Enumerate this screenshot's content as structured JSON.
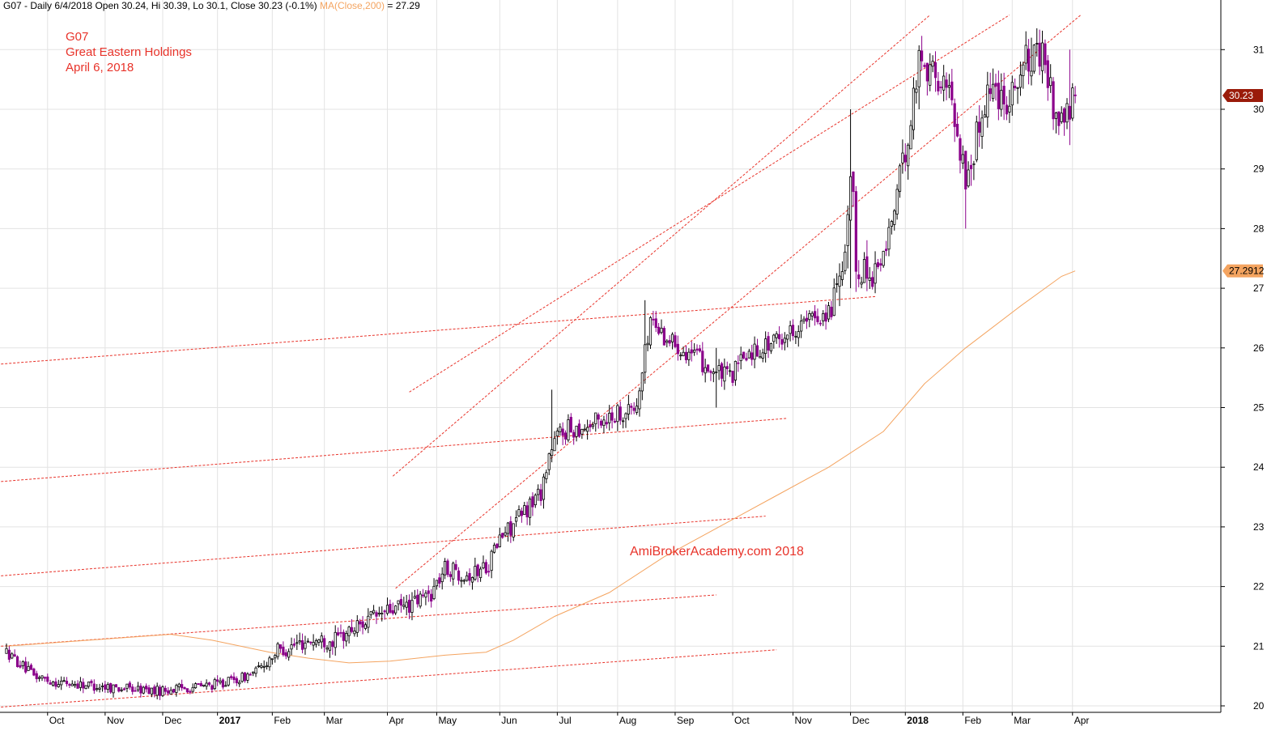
{
  "header": {
    "ticker": "G07",
    "period": "Daily",
    "date": "6/4/2018",
    "open": "Open 30.24,",
    "high": "Hi 30.39,",
    "low": "Lo 30.1,",
    "close": "Close 30.23 (-0.1%)",
    "ma_label": "MA(Close,200)",
    "ma_value": "= 27.29"
  },
  "annotations": {
    "symbol": "G07",
    "name": "Great Eastern Holdings",
    "date": "April 6, 2018",
    "watermark": "AmiBrokerAcademy.com  2018"
  },
  "chart_data": {
    "type": "candlestick",
    "ylim": [
      20,
      31.6
    ],
    "y_ticks": [
      "20",
      "21",
      "22",
      "23",
      "24",
      "25",
      "26",
      "27",
      "28",
      "29",
      "30",
      "31"
    ],
    "x_ticks": [
      {
        "label": "Oct",
        "bar": 15,
        "bold": false
      },
      {
        "label": "Nov",
        "bar": 36,
        "bold": false
      },
      {
        "label": "Dec",
        "bar": 57,
        "bold": false
      },
      {
        "label": "2017",
        "bar": 77,
        "bold": true
      },
      {
        "label": "Feb",
        "bar": 97,
        "bold": false
      },
      {
        "label": "Mar",
        "bar": 116,
        "bold": false
      },
      {
        "label": "Apr",
        "bar": 139,
        "bold": false
      },
      {
        "label": "May",
        "bar": 157,
        "bold": false
      },
      {
        "label": "Jun",
        "bar": 180,
        "bold": false
      },
      {
        "label": "Jul",
        "bar": 201,
        "bold": false
      },
      {
        "label": "Aug",
        "bar": 223,
        "bold": false
      },
      {
        "label": "Sep",
        "bar": 244,
        "bold": false
      },
      {
        "label": "Oct",
        "bar": 265,
        "bold": false
      },
      {
        "label": "Nov",
        "bar": 287,
        "bold": false
      },
      {
        "label": "Dec",
        "bar": 308,
        "bold": false
      },
      {
        "label": "2018",
        "bar": 328,
        "bold": true
      },
      {
        "label": "Feb",
        "bar": 349,
        "bold": false
      },
      {
        "label": "Mar",
        "bar": 367,
        "bold": false
      },
      {
        "label": "Apr",
        "bar": 389,
        "bold": false
      }
    ],
    "price_anchors": [
      [
        0,
        20.9
      ],
      [
        10,
        20.5
      ],
      [
        18,
        20.4
      ],
      [
        30,
        20.35
      ],
      [
        42,
        20.3
      ],
      [
        55,
        20.25
      ],
      [
        65,
        20.3
      ],
      [
        75,
        20.35
      ],
      [
        85,
        20.45
      ],
      [
        92,
        20.6
      ],
      [
        98,
        20.9
      ],
      [
        110,
        21.1
      ],
      [
        120,
        21.1
      ],
      [
        130,
        21.4
      ],
      [
        140,
        21.6
      ],
      [
        148,
        21.7
      ],
      [
        155,
        21.9
      ],
      [
        160,
        22.3
      ],
      [
        170,
        22.2
      ],
      [
        176,
        22.4
      ],
      [
        180,
        22.8
      ],
      [
        188,
        23.2
      ],
      [
        195,
        23.6
      ],
      [
        198,
        24.2
      ],
      [
        202,
        24.6
      ],
      [
        212,
        24.7
      ],
      [
        222,
        24.9
      ],
      [
        230,
        25.0
      ],
      [
        235,
        26.5
      ],
      [
        240,
        26.2
      ],
      [
        250,
        25.9
      ],
      [
        258,
        25.6
      ],
      [
        264,
        25.5
      ],
      [
        270,
        25.9
      ],
      [
        280,
        26.1
      ],
      [
        290,
        26.4
      ],
      [
        300,
        26.6
      ],
      [
        306,
        27.2
      ],
      [
        308,
        29.0
      ],
      [
        310,
        27.5
      ],
      [
        315,
        27.2
      ],
      [
        320,
        27.5
      ],
      [
        325,
        28.6
      ],
      [
        330,
        29.8
      ],
      [
        333,
        30.9
      ],
      [
        340,
        30.5
      ],
      [
        345,
        30.2
      ],
      [
        350,
        28.8
      ],
      [
        353,
        29.3
      ],
      [
        358,
        30.4
      ],
      [
        365,
        30.2
      ],
      [
        372,
        30.8
      ],
      [
        378,
        30.9
      ],
      [
        383,
        29.9
      ],
      [
        386,
        29.8
      ],
      [
        390,
        30.23
      ]
    ],
    "volatility": [
      [
        0,
        0.18
      ],
      [
        90,
        0.16
      ],
      [
        100,
        0.28
      ],
      [
        180,
        0.3
      ],
      [
        200,
        0.34
      ],
      [
        300,
        0.3
      ],
      [
        306,
        0.9
      ],
      [
        320,
        0.35
      ],
      [
        330,
        0.5
      ],
      [
        350,
        0.6
      ],
      [
        390,
        0.5
      ]
    ],
    "events": [
      {
        "bar": 199,
        "high": 25.3,
        "low": 24.1
      },
      {
        "bar": 233,
        "high": 26.8,
        "low": 25.4
      },
      {
        "bar": 259,
        "high": 26.0,
        "low": 25.0
      },
      {
        "bar": 308,
        "high": 30.0,
        "low": 27.0
      },
      {
        "bar": 333,
        "high": 31.05,
        "low": 30.0
      },
      {
        "bar": 350,
        "high": 29.2,
        "low": 28.0
      },
      {
        "bar": 374,
        "high": 31.2,
        "low": 30.4
      },
      {
        "bar": 388,
        "high": 31.0,
        "low": 29.4
      }
    ],
    "last_bar": {
      "bar": 390,
      "open": 30.24,
      "high": 30.39,
      "low": 30.1,
      "close": 30.23
    },
    "ma_series": {
      "name": "MA(Close,200)",
      "last_value": 27.2912,
      "points": [
        [
          0,
          21.0
        ],
        [
          30,
          21.1
        ],
        [
          60,
          21.2
        ],
        [
          75,
          21.1
        ],
        [
          96,
          20.9
        ],
        [
          110,
          20.8
        ],
        [
          125,
          20.72
        ],
        [
          140,
          20.75
        ],
        [
          160,
          20.85
        ],
        [
          175,
          20.9
        ],
        [
          185,
          21.1
        ],
        [
          200,
          21.5
        ],
        [
          220,
          21.9
        ],
        [
          240,
          22.5
        ],
        [
          260,
          23.0
        ],
        [
          280,
          23.5
        ],
        [
          300,
          24.0
        ],
        [
          320,
          24.6
        ],
        [
          335,
          25.4
        ],
        [
          350,
          26.0
        ],
        [
          370,
          26.7
        ],
        [
          385,
          27.2
        ],
        [
          390,
          27.29
        ]
      ]
    },
    "price_tag": "30.23",
    "ma_tag": "27.2912",
    "trendlines": [
      {
        "x1": -2,
        "y1": 25.73,
        "x2": 317,
        "y2": 26.86
      },
      {
        "x1": -2,
        "y1": 23.76,
        "x2": 285,
        "y2": 24.82
      },
      {
        "x1": -2,
        "y1": 22.18,
        "x2": 277,
        "y2": 23.18
      },
      {
        "x1": -2,
        "y1": 21.0,
        "x2": 259,
        "y2": 21.86
      },
      {
        "x1": -2,
        "y1": 19.98,
        "x2": 281,
        "y2": 20.94
      },
      {
        "x1": 141,
        "y1": 23.85,
        "x2": 337,
        "y2": 31.58
      },
      {
        "x1": 147,
        "y1": 25.26,
        "x2": 366,
        "y2": 31.58
      },
      {
        "x1": 142,
        "y1": 21.97,
        "x2": 392,
        "y2": 31.58
      }
    ]
  },
  "colors": {
    "background": "#ffffff",
    "grid": "#e3e3e3",
    "bar_up": "#000000",
    "bar_down": "#8b008b",
    "ma_line": "#f4a460",
    "trendline": "#e8332a",
    "price_tag_bg": "#9a1b0a",
    "ma_tag_bg": "#f4a460"
  }
}
